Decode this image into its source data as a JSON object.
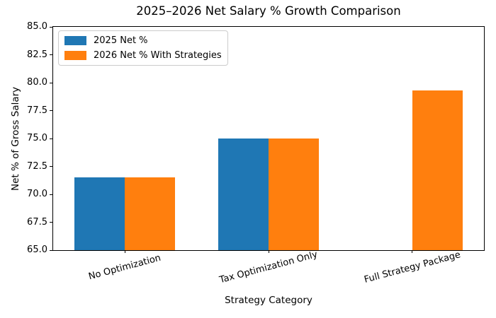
{
  "figure": {
    "background": "#ffffff",
    "frame_color": "#000000"
  },
  "chart_data": {
    "type": "bar",
    "title": "2025–2026 Net Salary % Growth Comparison",
    "xlabel": "Strategy Category",
    "ylabel": "Net % of Gross Salary",
    "categories": [
      "No Optimization",
      "Tax Optimization Only",
      "Full Strategy Package"
    ],
    "series": [
      {
        "name": "2025 Net %",
        "color": "#1f77b4",
        "values": [
          71.5,
          75.0,
          null
        ]
      },
      {
        "name": "2026 Net % With Strategies",
        "color": "#ff7f0e",
        "values": [
          71.5,
          75.0,
          79.3
        ]
      }
    ],
    "ylim": [
      65.0,
      85.0
    ],
    "yticks": [
      85.0,
      82.5,
      80.0,
      77.5,
      75.0,
      72.5,
      70.0,
      67.5,
      65.0
    ],
    "ytick_decimals": 1,
    "bar_width_fraction": 0.35,
    "xtick_rotation_deg": 15,
    "grid": false,
    "legend_position": "upper left"
  }
}
